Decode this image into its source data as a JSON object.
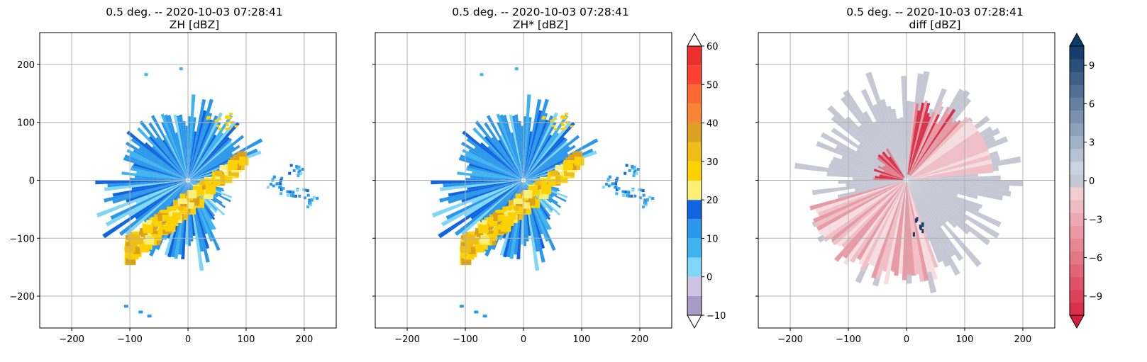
{
  "chart_data": [
    {
      "type": "heatmap",
      "title": "0.5 deg. -- 2020-10-03 07:28:41",
      "subtitle": "ZH [dBZ]",
      "xlim": [
        -255,
        255
      ],
      "ylim": [
        -255,
        255
      ],
      "xticks": [
        -200,
        -100,
        0,
        100,
        200
      ],
      "yticks": [
        -200,
        -100,
        0,
        100,
        200
      ],
      "xtick_labels": [
        "−200",
        "−100",
        "0",
        "100",
        "200"
      ],
      "ytick_labels": [
        "−200",
        "−100",
        "0",
        "100",
        "200"
      ],
      "grid": true,
      "show_yticklabels": true,
      "echo_style": "reflectivity"
    },
    {
      "type": "heatmap",
      "title": "0.5 deg. -- 2020-10-03 07:28:41",
      "subtitle": "ZH* [dBZ]",
      "xlim": [
        -255,
        255
      ],
      "ylim": [
        -255,
        255
      ],
      "xticks": [
        -200,
        -100,
        0,
        100,
        200
      ],
      "yticks": [
        -200,
        -100,
        0,
        100,
        200
      ],
      "xtick_labels": [
        "−200",
        "−100",
        "0",
        "100",
        "200"
      ],
      "ytick_labels": [
        "−200",
        "−100",
        "0",
        "100",
        "200"
      ],
      "grid": true,
      "show_yticklabels": false,
      "echo_style": "reflectivity",
      "colorbar": {
        "min": -10,
        "max": 60,
        "ticks": [
          -10,
          0,
          10,
          20,
          30,
          40,
          50,
          60
        ],
        "tick_labels": [
          "−10",
          "0",
          "10",
          "20",
          "30",
          "40",
          "50",
          "60"
        ],
        "bounds": [
          -10,
          -5,
          0,
          5,
          10,
          15,
          20,
          25,
          30,
          35,
          40,
          45,
          50,
          55,
          60
        ],
        "colors": [
          "#a99bc8",
          "#cfc3e3",
          "#7fd6f7",
          "#3db3f0",
          "#2a97ea",
          "#1066e0",
          "#fbef76",
          "#fed100",
          "#efbe16",
          "#dba020",
          "#fb8434",
          "#fe6a33",
          "#ff4131",
          "#ec302d",
          "#a01414"
        ],
        "extend": "both",
        "under_color": "#ffffff",
        "over_color": "#ffffff"
      }
    },
    {
      "type": "heatmap",
      "title": "0.5 deg. -- 2020-10-03 07:28:41",
      "subtitle": "diff [dBZ]",
      "xlim": [
        -255,
        255
      ],
      "ylim": [
        -255,
        255
      ],
      "xticks": [
        -200,
        -100,
        0,
        100,
        200
      ],
      "yticks": [
        -200,
        -100,
        0,
        100,
        200
      ],
      "xtick_labels": [
        "−200",
        "−100",
        "0",
        "100",
        "200"
      ],
      "ytick_labels": [
        "−200",
        "−100",
        "0",
        "100",
        "200"
      ],
      "grid": true,
      "show_yticklabels": false,
      "echo_style": "difference",
      "colorbar": {
        "min": -10.5,
        "max": 10.5,
        "ticks": [
          -9,
          -6,
          -3,
          0,
          3,
          6,
          9
        ],
        "tick_labels": [
          "−9",
          "−6",
          "−3",
          "0",
          "3",
          "6",
          "9"
        ],
        "extend": "both",
        "neg_color_strong": "#d9314a",
        "neg_color_weak": "#f5dde0",
        "pos_color_weak": "#dde4ee",
        "pos_color_strong": "#163e6c",
        "zero_color": "#c5c8d4",
        "under_color": "#d41c3c",
        "over_color": "#0f3b68"
      }
    }
  ]
}
